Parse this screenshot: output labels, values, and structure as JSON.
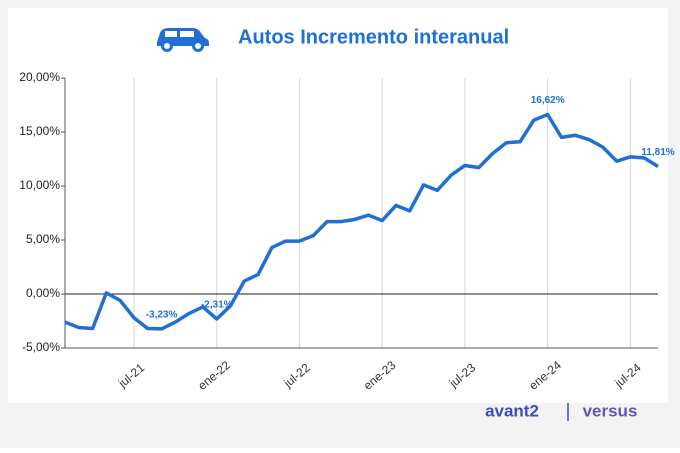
{
  "chart_data": {
    "type": "line",
    "title": "Autos Incremento interanual",
    "categories": [
      null,
      null,
      null,
      null,
      null,
      "jul-21",
      null,
      null,
      null,
      null,
      null,
      "ene-22",
      null,
      null,
      null,
      null,
      null,
      "jul-22",
      null,
      null,
      null,
      null,
      null,
      "ene-23",
      null,
      null,
      null,
      null,
      null,
      "jul-23",
      null,
      null,
      null,
      null,
      null,
      "ene-24",
      null,
      null,
      null,
      null,
      null,
      "jul-24",
      null,
      null
    ],
    "series": [
      {
        "name": null,
        "color": "#1f6fd6",
        "values": [
          -2.6,
          -3.1,
          -3.2,
          0.1,
          -0.6,
          -2.2,
          -3.2,
          -3.23,
          -2.6,
          -1.8,
          -1.2,
          -2.31,
          -1.1,
          1.2,
          1.8,
          4.3,
          4.9,
          4.9,
          5.4,
          6.7,
          6.7,
          6.9,
          7.3,
          6.8,
          8.2,
          7.7,
          10.1,
          9.6,
          11.0,
          11.9,
          11.7,
          13.0,
          14.0,
          14.1,
          16.1,
          16.62,
          14.5,
          14.7,
          14.3,
          13.6,
          12.3,
          12.7,
          12.6,
          11.81
        ],
        "value_labels": [
          null,
          null,
          null,
          null,
          null,
          null,
          null,
          "-3,23%",
          null,
          null,
          null,
          "-2,31%",
          null,
          null,
          null,
          null,
          null,
          null,
          null,
          null,
          null,
          null,
          null,
          null,
          null,
          null,
          null,
          null,
          null,
          null,
          null,
          null,
          null,
          null,
          null,
          "16,62%",
          null,
          null,
          null,
          null,
          null,
          null,
          null,
          "11,81%"
        ]
      }
    ],
    "ylim": [
      -5,
      20
    ],
    "yticks": [
      {
        "value": -5,
        "label": "-5,00%"
      },
      {
        "value": 0,
        "label": "0,00%"
      },
      {
        "value": 5,
        "label": "5,00%"
      },
      {
        "value": 10,
        "label": "10,00%"
      },
      {
        "value": 15,
        "label": "15,00%"
      },
      {
        "value": 20,
        "label": "20,00%"
      }
    ],
    "logos": [
      "avant2",
      "versus"
    ]
  }
}
